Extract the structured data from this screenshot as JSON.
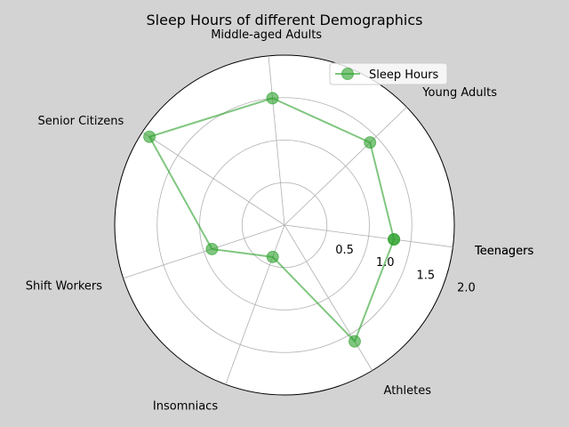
{
  "chart_data": {
    "type": "radar",
    "title": "Sleep Hours of different Demographics",
    "categories": [
      "Teenagers",
      "Young Adults",
      "Middle-aged Adults",
      "Senior Citizens",
      "Shift Workers",
      "Insomniacs",
      "Athletes"
    ],
    "closing_label": "Teenagers",
    "series": [
      {
        "name": "Sleep Hours",
        "values": [
          1.3,
          1.4,
          1.5,
          1.9,
          0.9,
          0.4,
          1.6
        ],
        "color": "#2ca02c"
      }
    ],
    "rlim": [
      0,
      2.0
    ],
    "r_ticks": [
      "0.5",
      "1.0",
      "1.5",
      "2.0"
    ],
    "grid": true,
    "legend": "top-right",
    "background": "#d3d3d3"
  }
}
